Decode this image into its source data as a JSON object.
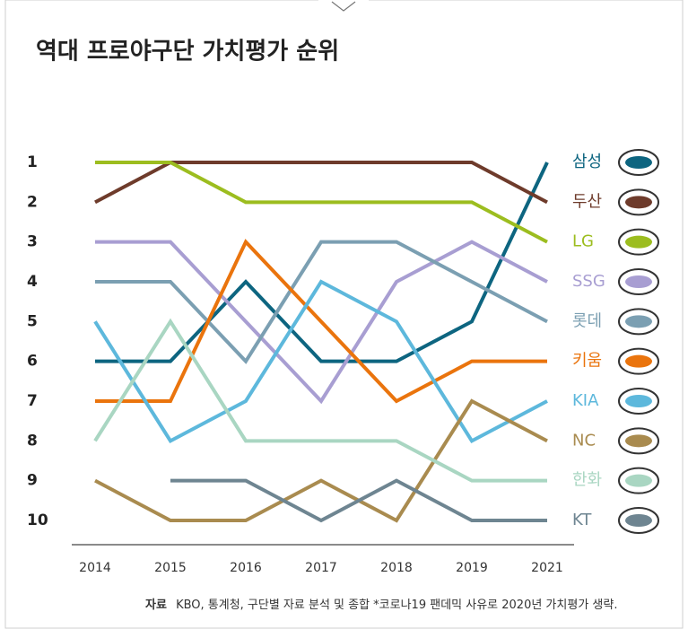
{
  "chart_data": {
    "type": "bump",
    "title": "역대 프로야구단 가치평가 순위",
    "footnote": {
      "label": "자료",
      "text": "KBO, 통계청, 구단별 자료 분석 및 종합 *코로나19 팬데믹 사유로 2020년 가치평가 생략."
    },
    "categories": [
      "2014",
      "2015",
      "2016",
      "2017",
      "2018",
      "2019",
      "2021"
    ],
    "ylim": [
      1,
      10
    ],
    "yticks": [
      1,
      2,
      3,
      4,
      5,
      6,
      7,
      8,
      9,
      10
    ],
    "series": [
      {
        "name": "삼성",
        "color": "#0d6580",
        "values": [
          6,
          6,
          4,
          6,
          6,
          5,
          1
        ]
      },
      {
        "name": "두산",
        "color": "#6e3b2b",
        "values": [
          2,
          1,
          1,
          1,
          1,
          1,
          2
        ]
      },
      {
        "name": "LG",
        "color": "#9cbd1f",
        "values": [
          1,
          1,
          2,
          2,
          2,
          2,
          3
        ]
      },
      {
        "name": "SSG",
        "color": "#a89ed2",
        "values": [
          3,
          3,
          5,
          7,
          4,
          3,
          4
        ]
      },
      {
        "name": "롯데",
        "color": "#7b9fb2",
        "values": [
          4,
          4,
          6,
          3,
          3,
          4,
          5
        ]
      },
      {
        "name": "키움",
        "color": "#ea740d",
        "values": [
          7,
          7,
          3,
          5,
          7,
          6,
          6
        ]
      },
      {
        "name": "KIA",
        "color": "#5db8dc",
        "values": [
          5,
          8,
          7,
          4,
          5,
          8,
          7
        ]
      },
      {
        "name": "NC",
        "color": "#a98b4f",
        "values": [
          9,
          10,
          10,
          9,
          10,
          7,
          8
        ]
      },
      {
        "name": "한화",
        "color": "#a9d6c2",
        "values": [
          8,
          5,
          8,
          8,
          8,
          9,
          9
        ]
      },
      {
        "name": "KT",
        "color": "#6e8591",
        "values": [
          null,
          9,
          9,
          10,
          9,
          10,
          10
        ]
      }
    ]
  }
}
